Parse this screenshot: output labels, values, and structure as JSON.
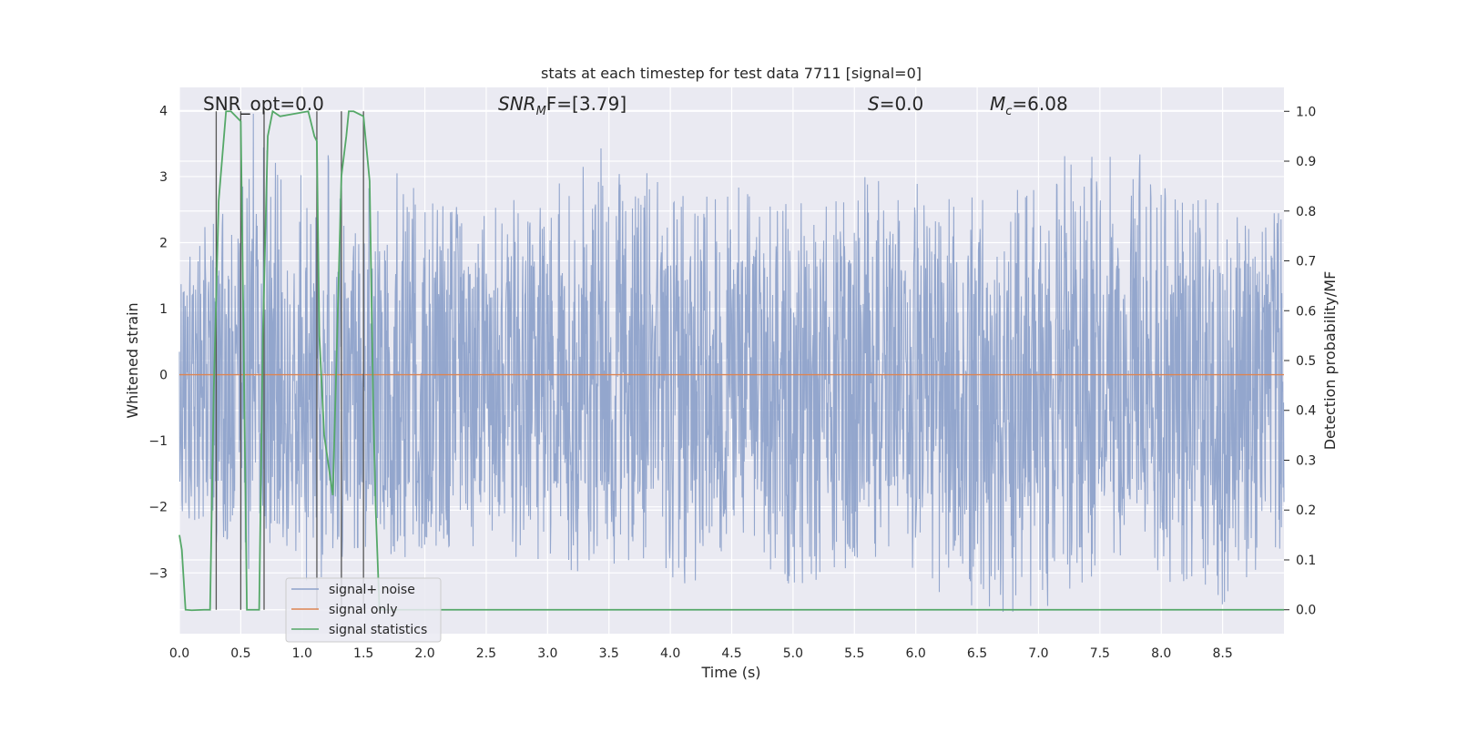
{
  "chart_data": {
    "type": "line",
    "title": "stats at each timestep for test data 7711 [signal=0]",
    "xlabel": "Time (s)",
    "ylabel": "Whitened strain",
    "y2label": "Detection probability/MF",
    "xlim": [
      0.0,
      9.0
    ],
    "ylim": [
      -3.92,
      4.35
    ],
    "y2lim": [
      -0.048,
      1.048
    ],
    "x_ticks": [
      0.0,
      0.5,
      1.0,
      1.5,
      2.0,
      2.5,
      3.0,
      3.5,
      4.0,
      4.5,
      5.0,
      5.5,
      6.0,
      6.5,
      7.0,
      7.5,
      8.0,
      8.5
    ],
    "x_tick_labels": [
      "0.0",
      "0.5",
      "1.0",
      "1.5",
      "2.0",
      "2.5",
      "3.0",
      "3.5",
      "4.0",
      "4.5",
      "5.0",
      "5.5",
      "6.0",
      "6.5",
      "7.0",
      "7.5",
      "8.0",
      "8.5"
    ],
    "y_ticks": [
      4,
      3,
      2,
      1,
      0,
      -1,
      -2,
      -3
    ],
    "y_tick_labels": [
      "4",
      "3",
      "2",
      "1",
      "0",
      "−1",
      "−2",
      "−3"
    ],
    "y2_ticks": [
      1.0,
      0.9,
      0.8,
      0.7,
      0.6,
      0.5,
      0.4,
      0.3,
      0.2,
      0.1,
      0.0
    ],
    "y2_tick_labels": [
      "1.0",
      "0.9",
      "0.8",
      "0.7",
      "0.6",
      "0.5",
      "0.4",
      "0.3",
      "0.2",
      "0.1",
      "0.0"
    ],
    "grid": true,
    "legend_position": "lower-left",
    "legend": [
      "signal+ noise",
      "signal only",
      "signal statistics"
    ],
    "annotations": {
      "snr_opt": "SNR_opt=0.0",
      "snr_mf_main": "SNR",
      "snr_mf_sub": "M",
      "snr_mf_rest": "F=[3.79]",
      "s_var": "S",
      "s_val": "=0.0",
      "mc_var": "M",
      "mc_sub": "c",
      "mc_val": "=6.08"
    },
    "noise_envelope": {
      "x": [
        0.0,
        0.2,
        0.4,
        0.6,
        0.8,
        1.0,
        1.2,
        1.4,
        1.6,
        1.8,
        2.0,
        2.5,
        3.0,
        3.5,
        4.0,
        4.5,
        5.0,
        5.5,
        6.0,
        6.5,
        7.0,
        7.5,
        8.0,
        8.5,
        9.0
      ],
      "upper": [
        1.7,
        2.6,
        2.5,
        4.0,
        3.2,
        3.3,
        3.5,
        3.0,
        2.8,
        3.3,
        2.6,
        2.6,
        3.0,
        3.5,
        2.8,
        2.9,
        2.7,
        3.0,
        3.0,
        2.8,
        2.8,
        4.0,
        3.0,
        2.6,
        2.5
      ],
      "lower": [
        -2.3,
        -2.4,
        -2.8,
        -3.0,
        -2.4,
        -3.2,
        -3.1,
        -2.8,
        -2.6,
        -2.8,
        -2.6,
        -2.8,
        -3.0,
        -3.0,
        -3.2,
        -3.2,
        -3.2,
        -3.1,
        -3.1,
        -3.6,
        -3.6,
        -3.0,
        -3.1,
        -3.5,
        -2.9
      ],
      "core": [
        1.2,
        -1.6
      ]
    },
    "series": [
      {
        "name": "signal+ noise",
        "color": "#8ea2ca",
        "axis": "left",
        "values": "dense whitened strain noise, roughly ±1.5 with spikes to about ±4"
      },
      {
        "name": "signal only",
        "color": "#dd8452",
        "axis": "left",
        "x": [
          0.0,
          9.0
        ],
        "y": [
          0.0,
          0.0
        ]
      },
      {
        "name": "signal statistics",
        "color": "#55a868",
        "axis": "right",
        "x": [
          0.0,
          0.02,
          0.05,
          0.1,
          0.2,
          0.25,
          0.28,
          0.32,
          0.38,
          0.42,
          0.5,
          0.52,
          0.55,
          0.6,
          0.65,
          0.68,
          0.72,
          0.76,
          0.82,
          1.05,
          1.1,
          1.12,
          1.14,
          1.18,
          1.25,
          1.28,
          1.32,
          1.36,
          1.38,
          1.42,
          1.5,
          1.55,
          1.58,
          1.6,
          1.63,
          9.0
        ],
        "y": [
          0.15,
          0.12,
          0.0,
          -0.001,
          0.0,
          0.0,
          0.44,
          0.82,
          1.0,
          1.0,
          0.98,
          0.6,
          0.0,
          0.0,
          0.0,
          0.55,
          0.95,
          1.0,
          0.99,
          1.0,
          0.95,
          0.94,
          0.55,
          0.35,
          0.23,
          0.5,
          0.87,
          0.95,
          1.0,
          1.0,
          0.99,
          0.86,
          0.4,
          0.2,
          0.0,
          0.0
        ]
      }
    ],
    "vertical_markers": [
      0.3,
      0.5,
      0.69,
      1.12,
      1.32,
      1.5
    ]
  }
}
